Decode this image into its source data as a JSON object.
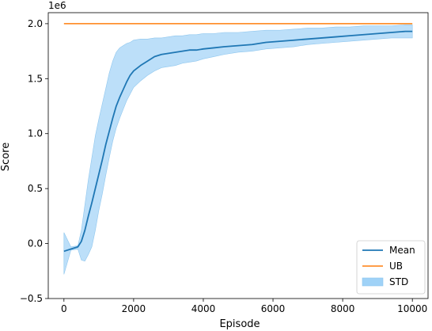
{
  "chart_data": {
    "type": "line",
    "title": "",
    "xlabel": "Episode",
    "ylabel": "Score",
    "y_multiplier_label": "1e6",
    "xlim": [
      -450,
      10450
    ],
    "ylim": [
      -0.5,
      2.1
    ],
    "x_ticks": [
      0,
      2000,
      4000,
      6000,
      8000,
      10000
    ],
    "x_tick_labels": [
      "0",
      "2000",
      "4000",
      "6000",
      "8000",
      "10000"
    ],
    "y_ticks": [
      -0.5,
      0.0,
      0.5,
      1.0,
      1.5,
      2.0
    ],
    "y_tick_labels": [
      "−0.5",
      "0.0",
      "0.5",
      "1.0",
      "1.5",
      "2.0"
    ],
    "grid": false,
    "legend_position": "bottom-right",
    "x": [
      0,
      200,
      400,
      500,
      600,
      700,
      800,
      900,
      1000,
      1100,
      1200,
      1300,
      1400,
      1500,
      1600,
      1700,
      1800,
      1900,
      2000,
      2200,
      2400,
      2600,
      2800,
      3000,
      3200,
      3400,
      3600,
      3800,
      4000,
      4300,
      4600,
      5000,
      5400,
      5800,
      6200,
      6600,
      7000,
      7400,
      7800,
      8200,
      8600,
      9000,
      9400,
      9800,
      10000
    ],
    "series": [
      {
        "name": "Mean",
        "color": "#1f77b4",
        "kind": "line",
        "values": [
          -0.07,
          -0.05,
          -0.03,
          0.02,
          0.12,
          0.25,
          0.37,
          0.5,
          0.63,
          0.76,
          0.9,
          1.02,
          1.14,
          1.25,
          1.33,
          1.4,
          1.47,
          1.53,
          1.57,
          1.62,
          1.66,
          1.7,
          1.72,
          1.73,
          1.74,
          1.75,
          1.76,
          1.76,
          1.77,
          1.78,
          1.79,
          1.8,
          1.81,
          1.83,
          1.84,
          1.85,
          1.86,
          1.87,
          1.88,
          1.89,
          1.9,
          1.91,
          1.92,
          1.93,
          1.93
        ]
      },
      {
        "name": "UB",
        "color": "#ff7f0e",
        "kind": "line",
        "values": [
          2.0,
          2.0,
          2.0,
          2.0,
          2.0,
          2.0,
          2.0,
          2.0,
          2.0,
          2.0,
          2.0,
          2.0,
          2.0,
          2.0,
          2.0,
          2.0,
          2.0,
          2.0,
          2.0,
          2.0,
          2.0,
          2.0,
          2.0,
          2.0,
          2.0,
          2.0,
          2.0,
          2.0,
          2.0,
          2.0,
          2.0,
          2.0,
          2.0,
          2.0,
          2.0,
          2.0,
          2.0,
          2.0,
          2.0,
          2.0,
          2.0,
          2.0,
          2.0,
          2.0,
          2.0
        ]
      },
      {
        "name": "STD",
        "color": "#9fd2f7",
        "kind": "band",
        "lower": [
          -0.28,
          -0.06,
          -0.05,
          -0.15,
          -0.16,
          -0.1,
          -0.03,
          0.12,
          0.3,
          0.45,
          0.62,
          0.78,
          0.93,
          1.05,
          1.14,
          1.22,
          1.3,
          1.36,
          1.42,
          1.48,
          1.53,
          1.57,
          1.6,
          1.61,
          1.62,
          1.64,
          1.65,
          1.66,
          1.68,
          1.7,
          1.72,
          1.74,
          1.75,
          1.77,
          1.78,
          1.79,
          1.81,
          1.82,
          1.83,
          1.84,
          1.85,
          1.86,
          1.87,
          1.87,
          1.87
        ],
        "upper": [
          0.1,
          -0.03,
          -0.02,
          0.12,
          0.35,
          0.58,
          0.78,
          0.98,
          1.13,
          1.27,
          1.41,
          1.55,
          1.66,
          1.74,
          1.78,
          1.8,
          1.82,
          1.83,
          1.85,
          1.86,
          1.86,
          1.87,
          1.87,
          1.88,
          1.89,
          1.89,
          1.9,
          1.9,
          1.91,
          1.91,
          1.92,
          1.92,
          1.93,
          1.94,
          1.94,
          1.95,
          1.96,
          1.96,
          1.97,
          1.97,
          1.98,
          1.98,
          1.98,
          1.99,
          1.99
        ]
      }
    ]
  }
}
